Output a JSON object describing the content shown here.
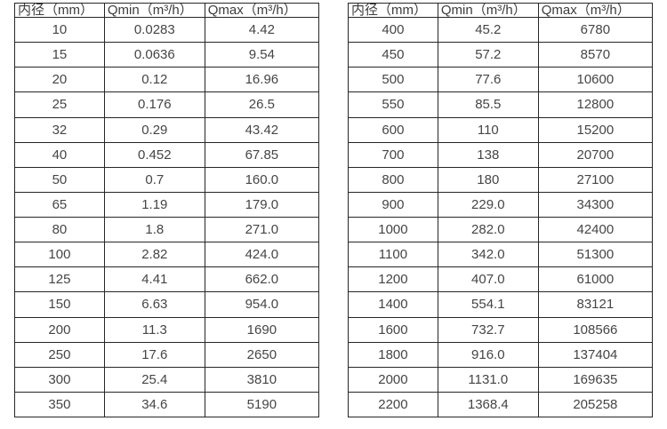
{
  "page": {
    "background_color": "#ffffff",
    "text_color": "#404040",
    "border_color": "#262626"
  },
  "tables": [
    {
      "name": "flow-rate-table-small-diameter",
      "headers": [
        "内径（mm）",
        "Qmin（m³/h）",
        "Qmax（m³/h）"
      ],
      "rows": [
        [
          "10",
          "0.0283",
          "4.42"
        ],
        [
          "15",
          "0.0636",
          "9.54"
        ],
        [
          "20",
          "0.12",
          "16.96"
        ],
        [
          "25",
          "0.176",
          "26.5"
        ],
        [
          "32",
          "0.29",
          "43.42"
        ],
        [
          "40",
          "0.452",
          "67.85"
        ],
        [
          "50",
          "0.7",
          "160.0"
        ],
        [
          "65",
          "1.19",
          "179.0"
        ],
        [
          "80",
          "1.8",
          "271.0"
        ],
        [
          "100",
          "2.82",
          "424.0"
        ],
        [
          "125",
          "4.41",
          "662.0"
        ],
        [
          "150",
          "6.63",
          "954.0"
        ],
        [
          "200",
          "11.3",
          "1690"
        ],
        [
          "250",
          "17.6",
          "2650"
        ],
        [
          "300",
          "25.4",
          "3810"
        ],
        [
          "350",
          "34.6",
          "5190"
        ]
      ]
    },
    {
      "name": "flow-rate-table-large-diameter",
      "headers": [
        "内径（mm）",
        "Qmin（m³/h）",
        "Qmax（m³/h）"
      ],
      "rows": [
        [
          "400",
          "45.2",
          "6780"
        ],
        [
          "450",
          "57.2",
          "8570"
        ],
        [
          "500",
          "77.6",
          "10600"
        ],
        [
          "550",
          "85.5",
          "12800"
        ],
        [
          "600",
          "110",
          "15200"
        ],
        [
          "700",
          "138",
          "20700"
        ],
        [
          "800",
          "180",
          "27100"
        ],
        [
          "900",
          "229.0",
          "34300"
        ],
        [
          "1000",
          "282.0",
          "42400"
        ],
        [
          "1100",
          "342.0",
          "51300"
        ],
        [
          "1200",
          "407.0",
          "61000"
        ],
        [
          "1400",
          "554.1",
          "83121"
        ],
        [
          "1600",
          "732.7",
          "108566"
        ],
        [
          "1800",
          "916.0",
          "137404"
        ],
        [
          "2000",
          "1131.0",
          "169635"
        ],
        [
          "2200",
          "1368.4",
          "205258"
        ]
      ]
    }
  ]
}
